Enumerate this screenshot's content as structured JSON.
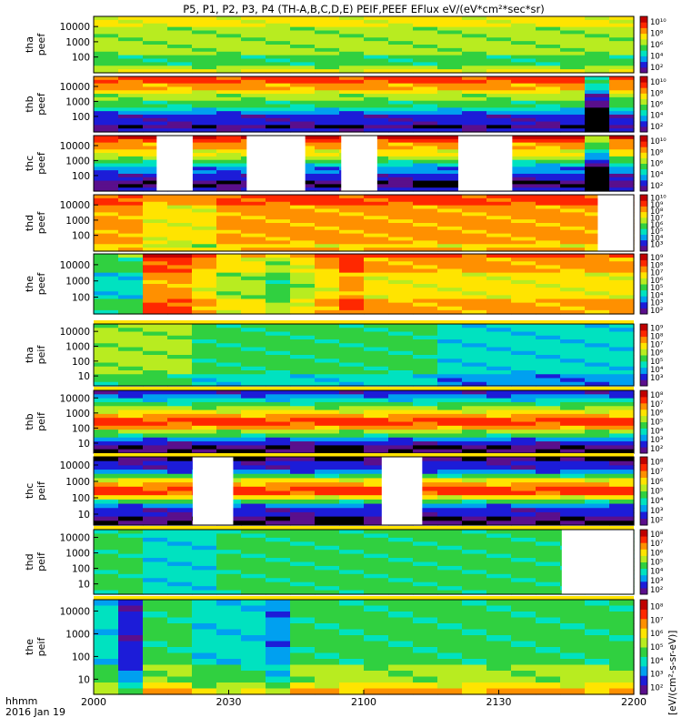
{
  "title": "P5, P1, P2, P3, P4 (TH-A,B,C,D,E) PEIF,PEEF EFlux eV/(eV*cm²*sec*sr)",
  "xaxis": {
    "ticks": [
      "2000",
      "2030",
      "2100",
      "2130",
      "2200"
    ],
    "label_line1": "hhmm",
    "label_line2": "2016 Jan 19"
  },
  "colorbar_title": "[eV/(cm²-s-sr-eV)]",
  "colors": {
    "rainbow": [
      "#5a0f8c",
      "#1c1cd8",
      "#00a0f0",
      "#00e2c0",
      "#30d040",
      "#b8ec20",
      "#ffe400",
      "#ff9000",
      "#ff2800",
      "#c00000"
    ],
    "black_band": "#000000",
    "gap": "#ffffff"
  },
  "chart_data": {
    "type": "heatmap",
    "x_range": [
      "2016-01-19 20:00",
      "2016-01-19 22:00"
    ],
    "panels": [
      {
        "probe": "tha",
        "product": "peef",
        "ylabel": [
          "tha",
          "peef"
        ],
        "yticks": [
          "10000",
          "1000",
          "100"
        ],
        "yscale": "log",
        "cb_ticks": [
          "10¹⁰",
          "10⁸",
          "10⁶",
          "10⁴",
          "10²"
        ],
        "cb_tick_exp": [
          10,
          8,
          6,
          4,
          2
        ],
        "cb_range_exp": [
          1,
          11
        ],
        "cols": 22,
        "rows": 16,
        "heat_profile": [
          6,
          6,
          6,
          5,
          5,
          5,
          5,
          5,
          5,
          5,
          5,
          4,
          4,
          4,
          5,
          6
        ],
        "column_offsets": [
          0,
          0,
          0,
          0,
          0,
          0,
          0,
          0,
          0,
          0,
          0,
          0,
          0,
          0,
          0,
          0,
          0,
          0,
          0,
          0,
          0,
          0
        ],
        "gaps": []
      },
      {
        "probe": "thb",
        "product": "peef",
        "ylabel": [
          "thb",
          "peef"
        ],
        "yticks": [
          "10000",
          "1000",
          "100"
        ],
        "yscale": "log",
        "cb_ticks": [
          "10¹⁰",
          "10⁸",
          "10⁶",
          "10⁴",
          "10²"
        ],
        "cb_tick_exp": [
          10,
          8,
          6,
          4,
          2
        ],
        "cb_range_exp": [
          1,
          11
        ],
        "cols": 22,
        "rows": 16,
        "heat_profile": [
          8,
          8,
          7,
          7,
          6,
          5,
          5,
          4,
          4,
          3,
          2,
          1,
          1,
          1,
          0,
          1
        ],
        "column_offsets": [
          0,
          0,
          0,
          0,
          0,
          0,
          0,
          0,
          0,
          0,
          0,
          0,
          0,
          0,
          0,
          0,
          0,
          0,
          0,
          0,
          -4,
          0
        ],
        "gaps": []
      },
      {
        "probe": "thc",
        "product": "peef",
        "ylabel": [
          "thc",
          "peef"
        ],
        "yticks": [
          "10000",
          "1000",
          "100"
        ],
        "yscale": "log",
        "cb_ticks": [
          "10¹⁰",
          "10⁸",
          "10⁶",
          "10⁴",
          "10²"
        ],
        "cb_tick_exp": [
          10,
          8,
          6,
          4,
          2
        ],
        "cb_range_exp": [
          1,
          11
        ],
        "cols": 22,
        "rows": 16,
        "heat_profile": [
          9,
          8,
          7,
          7,
          6,
          6,
          5,
          4,
          3,
          2,
          2,
          1,
          1,
          0,
          0,
          1
        ],
        "column_offsets": [
          0,
          0,
          0,
          0,
          0,
          0,
          0,
          0,
          0,
          0,
          0,
          0,
          0,
          0,
          0,
          0,
          0,
          0,
          0,
          0,
          -3,
          0
        ],
        "gaps": [
          [
            2014,
            2022
          ],
          [
            2034,
            2047
          ],
          [
            2055,
            2103
          ],
          [
            2121,
            2133
          ]
        ]
      },
      {
        "probe": "thd",
        "product": "peef",
        "ylabel": [
          "thd",
          "peef"
        ],
        "yticks": [
          "10000",
          "1000",
          "100"
        ],
        "yscale": "log",
        "cb_ticks": [
          "10¹⁰",
          "10⁹",
          "10⁸",
          "10⁷",
          "10⁶",
          "10⁵",
          "10⁴",
          "10³"
        ],
        "cb_tick_exp": [
          10,
          9,
          8,
          7,
          6,
          5,
          4,
          3
        ],
        "cb_range_exp": [
          2,
          10.5
        ],
        "cols": 22,
        "rows": 16,
        "heat_profile": [
          8,
          8,
          8,
          7,
          7,
          7,
          7,
          7,
          7,
          7,
          7,
          7,
          7,
          7,
          6,
          7
        ],
        "column_offsets": [
          0,
          0,
          -1,
          -1,
          -1,
          0,
          0,
          0,
          0,
          0,
          0,
          0,
          0,
          0,
          0,
          0,
          0,
          0,
          0,
          0,
          0,
          0
        ],
        "gaps": [
          [
            2152,
            2200
          ]
        ]
      },
      {
        "probe": "the",
        "product": "peef",
        "ylabel": [
          "the",
          "peef"
        ],
        "yticks": [
          "10000",
          "1000",
          "100"
        ],
        "yscale": "log",
        "cb_ticks": [
          "10⁹",
          "10⁸",
          "10⁷",
          "10⁶",
          "10⁵",
          "10⁴",
          "10³",
          "10²"
        ],
        "cb_tick_exp": [
          9,
          8,
          7,
          6,
          5,
          4,
          3,
          2
        ],
        "cb_range_exp": [
          1.5,
          9.5
        ],
        "cols": 22,
        "rows": 16,
        "heat_profile": [
          8,
          7,
          7,
          7,
          7,
          6,
          6,
          6,
          6,
          6,
          6,
          6,
          7,
          7,
          7,
          7
        ],
        "column_offsets": [
          -3,
          -3,
          1,
          1,
          0,
          -1,
          -1,
          -2,
          -1,
          0,
          1,
          0,
          0,
          0,
          0,
          0,
          0,
          0,
          0,
          0,
          0,
          0
        ],
        "gaps": []
      },
      {
        "probe": "tha",
        "product": "peif",
        "ylabel": [
          "tha",
          "peif"
        ],
        "yticks": [
          "10000",
          "1000",
          "100",
          "10"
        ],
        "yscale": "log",
        "cb_ticks": [
          "10⁹",
          "10⁸",
          "10⁷",
          "10⁶",
          "10⁵",
          "10⁴",
          "10³"
        ],
        "cb_tick_exp": [
          9,
          8,
          7,
          6,
          5,
          4,
          3
        ],
        "cb_range_exp": [
          2,
          9.5
        ],
        "cols": 22,
        "rows": 16,
        "heat_profile": [
          4,
          4,
          4,
          4,
          4,
          4,
          4,
          4,
          4,
          4,
          4,
          4,
          4,
          3,
          3,
          3
        ],
        "column_offsets": [
          1,
          1,
          1,
          1,
          0,
          0,
          0,
          0,
          0,
          0,
          0,
          0,
          0,
          0,
          -1,
          -1,
          -1,
          -1,
          -1,
          -1,
          -1,
          -1
        ],
        "gaps": []
      },
      {
        "probe": "thb",
        "product": "peif",
        "ylabel": [
          "thb",
          "peif"
        ],
        "yticks": [
          "10000",
          "1000",
          "100",
          "10"
        ],
        "yscale": "log",
        "cb_ticks": [
          "10⁸",
          "10⁷",
          "10⁶",
          "10⁵",
          "10⁴",
          "10³",
          "10²"
        ],
        "cb_tick_exp": [
          8,
          7,
          6,
          5,
          4,
          3,
          2
        ],
        "cb_range_exp": [
          1.5,
          8.5
        ],
        "cols": 22,
        "rows": 16,
        "heat_profile": [
          1,
          2,
          3,
          4,
          5,
          6,
          7,
          8,
          8,
          7,
          5,
          4,
          2,
          1,
          0,
          0
        ],
        "column_offsets": [
          0,
          0,
          0,
          0,
          0,
          0,
          0,
          0,
          0,
          0,
          0,
          0,
          0,
          0,
          0,
          0,
          0,
          0,
          0,
          0,
          0,
          0
        ],
        "gaps": []
      },
      {
        "probe": "thc",
        "product": "peif",
        "ylabel": [
          "thc",
          "peif"
        ],
        "yticks": [
          "10000",
          "1000",
          "100",
          "10"
        ],
        "yscale": "log",
        "cb_ticks": [
          "10⁸",
          "10⁷",
          "10⁶",
          "10⁵",
          "10⁴",
          "10³",
          "10²"
        ],
        "cb_tick_exp": [
          8,
          7,
          6,
          5,
          4,
          3,
          2
        ],
        "cb_range_exp": [
          1.5,
          8.5
        ],
        "cols": 22,
        "rows": 16,
        "heat_profile": [
          0,
          1,
          1,
          2,
          4,
          6,
          7,
          8,
          8,
          6,
          4,
          2,
          1,
          1,
          0,
          0
        ],
        "column_offsets": [
          0,
          0,
          0,
          0,
          0,
          0,
          0,
          0,
          0,
          0,
          0,
          0,
          0,
          0,
          0,
          0,
          0,
          0,
          0,
          0,
          0,
          0
        ],
        "gaps": [
          [
            2022,
            2031
          ],
          [
            2104,
            2113
          ]
        ]
      },
      {
        "probe": "thd",
        "product": "peif",
        "ylabel": [
          "thd",
          "peif"
        ],
        "yticks": [
          "10000",
          "1000",
          "100",
          "10"
        ],
        "yscale": "log",
        "cb_ticks": [
          "10⁸",
          "10⁷",
          "10⁶",
          "10⁵",
          "10⁴",
          "10³",
          "10²"
        ],
        "cb_tick_exp": [
          8,
          7,
          6,
          5,
          4,
          3,
          2
        ],
        "cb_range_exp": [
          1.5,
          8.5
        ],
        "cols": 22,
        "rows": 16,
        "heat_profile": [
          4,
          4,
          4,
          4,
          4,
          4,
          4,
          4,
          4,
          4,
          4,
          4,
          4,
          4,
          4,
          4
        ],
        "column_offsets": [
          0,
          0,
          -1,
          -1,
          -1,
          0,
          0,
          0,
          0,
          0,
          0,
          0,
          0,
          0,
          0,
          0,
          0,
          0,
          0,
          0,
          0,
          0
        ],
        "gaps": [
          [
            2144,
            2200
          ]
        ]
      },
      {
        "probe": "the",
        "product": "peif",
        "ylabel": [
          "the",
          "peif"
        ],
        "yticks": [
          "10000",
          "1000",
          "100",
          "10"
        ],
        "yscale": "log",
        "cb_ticks": [
          "10⁸",
          "10⁷",
          "10⁶",
          "10⁵",
          "10⁴",
          "10³",
          "10²"
        ],
        "cb_tick_exp": [
          8,
          7,
          6,
          5,
          4,
          3,
          2
        ],
        "cb_range_exp": [
          1.5,
          8.5
        ],
        "cols": 22,
        "rows": 16,
        "heat_profile": [
          4,
          4,
          4,
          4,
          4,
          4,
          4,
          4,
          4,
          4,
          4,
          5,
          5,
          5,
          6,
          7
        ],
        "column_offsets": [
          -1,
          -3,
          0,
          0,
          -1,
          -1,
          -1,
          -2,
          0,
          0,
          0,
          0,
          0,
          0,
          0,
          0,
          0,
          0,
          0,
          0,
          0,
          0
        ],
        "gaps": []
      }
    ]
  }
}
